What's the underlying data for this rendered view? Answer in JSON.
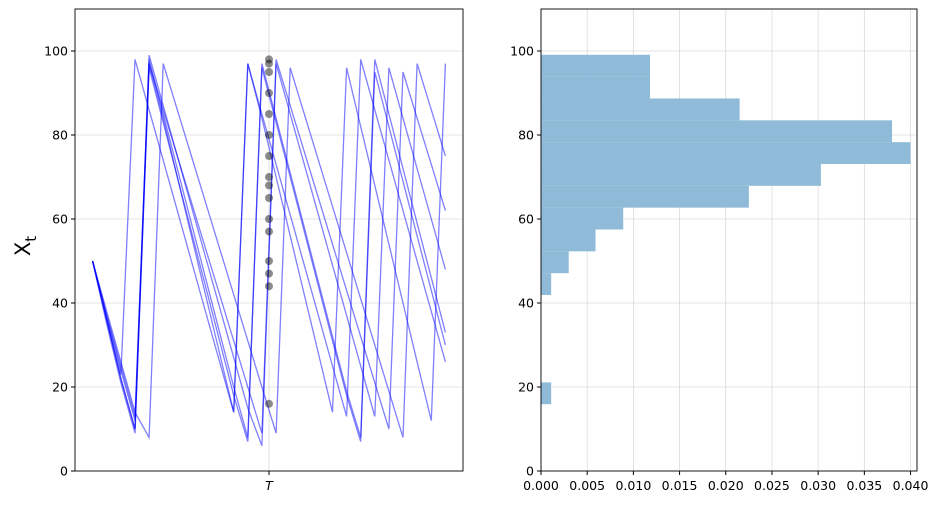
{
  "chart_data": [
    {
      "type": "line",
      "ylabel": {
        "base": "X",
        "subscript": "t"
      },
      "x": [
        0,
        4,
        8,
        12,
        16,
        20,
        24,
        28,
        32,
        36,
        40,
        44,
        48,
        52,
        56,
        60,
        64,
        68,
        72,
        76,
        80,
        84,
        88,
        92,
        96,
        100
      ],
      "line_color": "#0000ff",
      "series": [
        {
          "values": [
            50,
            36,
            22,
            10,
            97,
            84,
            70,
            56,
            42,
            28,
            14,
            97,
            84,
            70,
            56,
            42,
            28,
            14,
            96,
            82,
            68,
            54,
            40,
            26,
            12,
            97
          ]
        },
        {
          "values": [
            50,
            37,
            24,
            12,
            98,
            85,
            72,
            59,
            46,
            33,
            20,
            8,
            96,
            83,
            70,
            57,
            44,
            31,
            18,
            7,
            95,
            82,
            69,
            56,
            43,
            30
          ]
        },
        {
          "values": [
            50,
            36,
            23,
            98,
            86,
            74,
            62,
            50,
            38,
            26,
            14,
            97,
            85,
            73,
            61,
            49,
            37,
            25,
            13,
            98,
            86,
            74,
            62,
            50,
            38,
            26
          ]
        },
        {
          "values": [
            50,
            38,
            26,
            14,
            8,
            97,
            86,
            75,
            64,
            53,
            42,
            31,
            20,
            9,
            96,
            85,
            74,
            63,
            52,
            41,
            30,
            19,
            8,
            97,
            86,
            75
          ]
        },
        {
          "values": [
            50,
            35,
            21,
            9,
            96,
            83,
            70,
            57,
            44,
            31,
            18,
            7,
            97,
            84,
            71,
            58,
            45,
            32,
            19,
            8,
            98,
            85,
            72,
            59,
            46,
            33
          ]
        },
        {
          "values": [
            50,
            37,
            25,
            13,
            97,
            86,
            75,
            64,
            53,
            42,
            31,
            20,
            9,
            98,
            87,
            76,
            65,
            54,
            43,
            32,
            21,
            10,
            95,
            84,
            73,
            62
          ]
        },
        {
          "values": [
            50,
            36,
            22,
            10,
            99,
            87,
            75,
            63,
            51,
            39,
            27,
            15,
            6,
            97,
            85,
            73,
            61,
            49,
            37,
            25,
            13,
            96,
            84,
            72,
            60,
            48
          ]
        }
      ],
      "points": {
        "x": 50,
        "color": "#000000",
        "values": [
          98,
          97,
          95,
          90,
          85,
          80,
          75,
          70,
          68,
          65,
          60,
          57,
          50,
          47,
          44,
          16
        ]
      },
      "xlim": [
        -5,
        105
      ],
      "xticks": [
        {
          "value": 50,
          "label": "T"
        }
      ],
      "ylim": [
        0,
        110
      ],
      "yticks": [
        0,
        20,
        40,
        60,
        80,
        100
      ],
      "grid": true
    },
    {
      "type": "histogram",
      "orientation": "horizontal",
      "color": "#8fbbd9",
      "bins": [
        15.9,
        21.1,
        26.3,
        31.5,
        36.7,
        41.9,
        47.1,
        52.3,
        57.5,
        62.7,
        67.9,
        73.1,
        78.3,
        83.5,
        88.7,
        93.9,
        99.1
      ],
      "values": [
        0.0011,
        0,
        0,
        0,
        0,
        0.0011,
        0.003,
        0.0059,
        0.0089,
        0.0225,
        0.0303,
        0.04,
        0.038,
        0.0215,
        0.0118,
        0.0118
      ],
      "xlim": [
        0,
        0.0407
      ],
      "xticks": [
        {
          "value": 0,
          "label": "0.000"
        },
        {
          "value": 0.005,
          "label": "0.005"
        },
        {
          "value": 0.01,
          "label": "0.010"
        },
        {
          "value": 0.015,
          "label": "0.015"
        },
        {
          "value": 0.02,
          "label": "0.020"
        },
        {
          "value": 0.025,
          "label": "0.025"
        },
        {
          "value": 0.03,
          "label": "0.030"
        },
        {
          "value": 0.035,
          "label": "0.035"
        },
        {
          "value": 0.04,
          "label": "0.040"
        }
      ],
      "ylim": [
        0,
        110
      ],
      "yticks": [
        0,
        20,
        40,
        60,
        80,
        100
      ],
      "grid": true
    }
  ]
}
